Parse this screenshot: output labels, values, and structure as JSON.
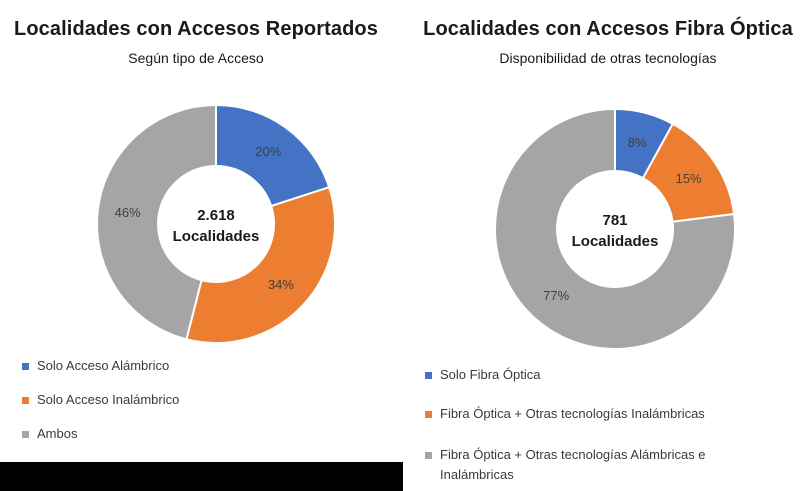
{
  "chart_data": [
    {
      "type": "pie",
      "title": "Localidades con Accesos Reportados",
      "subtitle": "Según tipo de Acceso",
      "center_text": {
        "line1": "2.618",
        "line2": "Localidades"
      },
      "categories": [
        "Solo Acceso Alámbrico",
        "Solo Acceso Inalámbrico",
        "Ambos"
      ],
      "values": [
        20,
        34,
        46
      ],
      "value_labels": [
        "20%",
        "34%",
        "46%"
      ],
      "colors": [
        "#4472C4",
        "#ED7D31",
        "#A5A5A5"
      ],
      "legend_position": "bottom-left"
    },
    {
      "type": "pie",
      "title": "Localidades con Accesos Fibra Óptica",
      "subtitle": "Disponibilidad de otras tecnologías",
      "center_text": {
        "line1": "781",
        "line2": "Localidades"
      },
      "categories": [
        "Solo Fibra Óptica",
        "Fibra Óptica + Otras tecnologías Inalámbricas",
        "Fibra Óptica + Otras tecnologías Alámbricas e Inalámbricas"
      ],
      "values": [
        8,
        15,
        77
      ],
      "value_labels": [
        "8%",
        "15%",
        "77%"
      ],
      "colors": [
        "#4472C4",
        "#ED7D31",
        "#A5A5A5"
      ],
      "legend_position": "bottom-left"
    }
  ]
}
